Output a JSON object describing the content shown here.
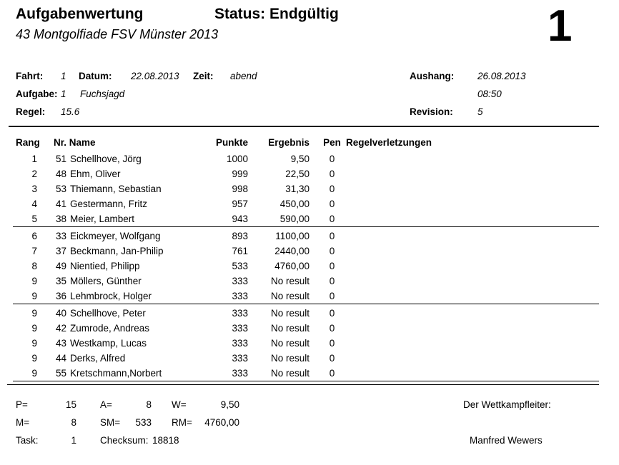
{
  "header": {
    "title": "Aufgabenwertung",
    "status": "Status: Endgültig",
    "subtitle": "43 Montgolfiade FSV Münster 2013",
    "page_number": "1"
  },
  "meta": {
    "fahrt_label": "Fahrt:",
    "fahrt": "1",
    "datum_label": "Datum:",
    "datum": "22.08.2013",
    "zeit_label": "Zeit:",
    "zeit": "abend",
    "aufgabe_label": "Aufgabe:",
    "aufgabe": "1",
    "aufgabe_name": "Fuchsjagd",
    "regel_label": "Regel:",
    "regel": "15.6",
    "aushang_label": "Aushang:",
    "aushang_date": "26.08.2013",
    "aushang_time": "08:50",
    "revision_label": "Revision:",
    "revision": "5"
  },
  "table": {
    "headers": {
      "rang": "Rang",
      "nr_name": "Nr. Name",
      "punkte": "Punkte",
      "ergebnis": "Ergebnis",
      "pen": "Pen",
      "regelverletzungen": "Regelverletzungen"
    },
    "groups": [
      [
        {
          "rang": "1",
          "nr": "51",
          "name": "Schellhove, Jörg",
          "punkte": "1000",
          "ergebnis": "9,50",
          "pen": "0",
          "regel": ""
        },
        {
          "rang": "2",
          "nr": "48",
          "name": "Ehm, Oliver",
          "punkte": "999",
          "ergebnis": "22,50",
          "pen": "0",
          "regel": ""
        },
        {
          "rang": "3",
          "nr": "53",
          "name": "Thiemann, Sebastian",
          "punkte": "998",
          "ergebnis": "31,30",
          "pen": "0",
          "regel": ""
        },
        {
          "rang": "4",
          "nr": "41",
          "name": "Gestermann, Fritz",
          "punkte": "957",
          "ergebnis": "450,00",
          "pen": "0",
          "regel": ""
        },
        {
          "rang": "5",
          "nr": "38",
          "name": "Meier, Lambert",
          "punkte": "943",
          "ergebnis": "590,00",
          "pen": "0",
          "regel": ""
        }
      ],
      [
        {
          "rang": "6",
          "nr": "33",
          "name": "Eickmeyer, Wolfgang",
          "punkte": "893",
          "ergebnis": "1100,00",
          "pen": "0",
          "regel": ""
        },
        {
          "rang": "7",
          "nr": "37",
          "name": "Beckmann, Jan-Philip",
          "punkte": "761",
          "ergebnis": "2440,00",
          "pen": "0",
          "regel": ""
        },
        {
          "rang": "8",
          "nr": "49",
          "name": "Nientied, Philipp",
          "punkte": "533",
          "ergebnis": "4760,00",
          "pen": "0",
          "regel": ""
        },
        {
          "rang": "9",
          "nr": "35",
          "name": "Möllers, Günther",
          "punkte": "333",
          "ergebnis": "No result",
          "pen": "0",
          "regel": ""
        },
        {
          "rang": "9",
          "nr": "36",
          "name": "Lehmbrock, Holger",
          "punkte": "333",
          "ergebnis": "No result",
          "pen": "0",
          "regel": ""
        }
      ],
      [
        {
          "rang": "9",
          "nr": "40",
          "name": "Schellhove, Peter",
          "punkte": "333",
          "ergebnis": "No result",
          "pen": "0",
          "regel": ""
        },
        {
          "rang": "9",
          "nr": "42",
          "name": "Zumrode, Andreas",
          "punkte": "333",
          "ergebnis": "No result",
          "pen": "0",
          "regel": ""
        },
        {
          "rang": "9",
          "nr": "43",
          "name": "Westkamp, Lucas",
          "punkte": "333",
          "ergebnis": "No result",
          "pen": "0",
          "regel": ""
        },
        {
          "rang": "9",
          "nr": "44",
          "name": "Derks, Alfred",
          "punkte": "333",
          "ergebnis": "No result",
          "pen": "0",
          "regel": ""
        },
        {
          "rang": "9",
          "nr": "55",
          "name": "Kretschmann,Norbert",
          "punkte": "333",
          "ergebnis": "No result",
          "pen": "0",
          "regel": ""
        }
      ]
    ]
  },
  "summary": {
    "p_label": "P=",
    "p": "15",
    "a_label": "A=",
    "a": "8",
    "w_label": "W=",
    "w": "9,50",
    "m_label": "M=",
    "m": "8",
    "sm_label": "SM=",
    "sm": "533",
    "rm_label": "RM=",
    "rm": "4760,00",
    "task_label": "Task:",
    "task": "1",
    "checksum_label": "Checksum:",
    "checksum": "18818",
    "official_label": "Der Wettkampfleiter:",
    "official_name": "Manfred Wewers"
  }
}
